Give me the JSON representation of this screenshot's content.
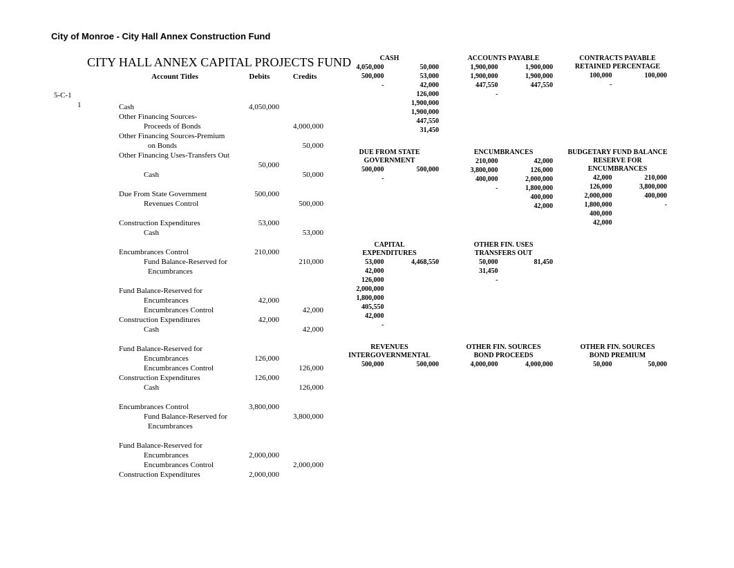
{
  "page": {
    "title_small": "City of Monroe - City Hall Annex Construction Fund",
    "title_large": "CITY HALL ANNEX CAPITAL PROJECTS FUND",
    "tag_5c1": "5-C-1",
    "tag_1": "1"
  },
  "journal": {
    "headers": {
      "account_titles": "Account Titles",
      "debits": "Debits",
      "credits": "Credits"
    },
    "rows": [
      {
        "t": "Cash",
        "d": "4,050,000",
        "c": ""
      },
      {
        "t": "Other Financing Sources-",
        "d": "",
        "c": ""
      },
      {
        "t": "Proceeds of Bonds",
        "indent": 1,
        "d": "",
        "c": "4,000,000"
      },
      {
        "t": "Other Financing Sources-Premium",
        "d": "",
        "c": "",
        "wrap": true
      },
      {
        "t": "on Bonds",
        "indent": 2,
        "d": "",
        "c": "50,000"
      },
      {
        "t": "Other Financing Uses-Transfers Out",
        "d": "",
        "c": "",
        "wrap": true
      },
      {
        "t": "",
        "d": "50,000",
        "c": ""
      },
      {
        "t": "Cash",
        "indent": 1,
        "d": "",
        "c": "50,000"
      },
      {
        "gap": true,
        "t": "Due From State Government",
        "d": "500,000",
        "c": ""
      },
      {
        "t": "Revenues Control",
        "indent": 1,
        "d": "",
        "c": "500,000"
      },
      {
        "gap": true,
        "t": "Construction Expenditures",
        "d": "53,000",
        "c": ""
      },
      {
        "t": "Cash",
        "indent": 1,
        "d": "",
        "c": "53,000"
      },
      {
        "gap": true,
        "t": "Encumbrances Control",
        "d": "210,000",
        "c": ""
      },
      {
        "t": "Fund Balance-Reserved for",
        "indent": 1,
        "d": "",
        "c": "210,000"
      },
      {
        "t": "Encumbrances",
        "indent": 2,
        "d": "",
        "c": ""
      },
      {
        "gap": true,
        "t": "Fund Balance-Reserved for",
        "d": "",
        "c": ""
      },
      {
        "t": "Encumbrances",
        "indent": 1,
        "d": "42,000",
        "c": ""
      },
      {
        "t": "Encumbrances Control",
        "indent": 1,
        "d": "",
        "c": "42,000"
      },
      {
        "t": "Construction Expenditures",
        "d": "42,000",
        "c": ""
      },
      {
        "t": "Cash",
        "indent": 1,
        "d": "",
        "c": "42,000"
      },
      {
        "gap": true,
        "t": "Fund Balance-Reserved for",
        "d": "",
        "c": ""
      },
      {
        "t": "Encumbrances",
        "indent": 1,
        "d": "126,000",
        "c": ""
      },
      {
        "t": "Encumbrances Control",
        "indent": 1,
        "d": "",
        "c": "126,000"
      },
      {
        "t": "Construction Expenditures",
        "d": "126,000",
        "c": ""
      },
      {
        "t": "Cash",
        "indent": 1,
        "d": "",
        "c": "126,000"
      },
      {
        "gap": true,
        "t": "Encumbrances Control",
        "d": "3,800,000",
        "c": ""
      },
      {
        "t": "Fund Balance-Reserved for",
        "indent": 1,
        "d": "",
        "c": "3,800,000"
      },
      {
        "t": "Encumbrances",
        "indent": 2,
        "d": "",
        "c": ""
      },
      {
        "gap": true,
        "t": "Fund Balance-Reserved for",
        "d": "",
        "c": ""
      },
      {
        "t": "Encumbrances",
        "indent": 1,
        "d": "2,000,000",
        "c": ""
      },
      {
        "t": "Encumbrances Control",
        "indent": 1,
        "d": "",
        "c": "2,000,000"
      },
      {
        "t": "Construction Expenditures",
        "d": "2,000,000",
        "c": ""
      }
    ]
  },
  "taccounts": {
    "row1": [
      {
        "title": [
          "",
          "CASH"
        ],
        "left": [
          "4,050,000",
          "500,000",
          "",
          "",
          "",
          "",
          "",
          "",
          "",
          "-"
        ],
        "right": [
          "50,000",
          "53,000",
          "42,000",
          "126,000",
          "1,900,000",
          "1,900,000",
          "447,550",
          "",
          "31,450",
          ""
        ]
      },
      {
        "title": [
          "",
          "ACCOUNTS PAYABLE"
        ],
        "left": [
          "1,900,000",
          "1,900,000",
          "447,550",
          "",
          "",
          "",
          "",
          "",
          "",
          "-"
        ],
        "right": [
          "1,900,000",
          "1,900,000",
          "447,550",
          "",
          "",
          "",
          "",
          "",
          "",
          ""
        ]
      },
      {
        "title": [
          "CONTRACTS PAYABLE",
          "RETAINED PERCENTAGE"
        ],
        "left": [
          "100,000",
          "",
          "",
          "",
          "",
          "",
          "",
          "",
          "",
          "-"
        ],
        "right": [
          "100,000",
          "",
          "",
          "",
          "",
          "",
          "",
          "",
          "",
          ""
        ]
      }
    ],
    "row2": [
      {
        "title": [
          "DUE FROM STATE",
          "GOVERNMENT"
        ],
        "left": [
          "500,000",
          "",
          "",
          "",
          "",
          "",
          "-"
        ],
        "right": [
          "500,000",
          "",
          "",
          "",
          "",
          "",
          ""
        ]
      },
      {
        "title": [
          "",
          "ENCUMBRANCES"
        ],
        "left": [
          "210,000",
          "3,800,000",
          "400,000",
          "",
          "",
          "",
          "-"
        ],
        "right": [
          "42,000",
          "126,000",
          "2,000,000",
          "1,800,000",
          "400,000",
          "42,000",
          ""
        ]
      },
      {
        "title": [
          "BUDGETARY FUND BALANCE",
          "RESERVE FOR ENCUMBRANCES"
        ],
        "left": [
          "42,000",
          "126,000",
          "2,000,000",
          "1,800,000",
          "400,000",
          "42,000",
          ""
        ],
        "right": [
          "210,000",
          "3,800,000",
          "400,000",
          "",
          "",
          "",
          "-"
        ]
      }
    ],
    "row3": [
      {
        "title": [
          "CAPITAL",
          "EXPENDITURES"
        ],
        "left": [
          "53,000",
          "42,000",
          "126,000",
          "2,000,000",
          "1,800,000",
          "405,550",
          "42,000",
          "-"
        ],
        "right": [
          "4,468,550",
          "",
          "",
          "",
          "",
          "",
          "",
          ""
        ]
      },
      {
        "title": [
          "OTHER FIN. USES",
          "TRANSFERS OUT"
        ],
        "left": [
          "50,000",
          "31,450",
          "",
          "",
          "",
          "",
          "",
          "-"
        ],
        "right": [
          "81,450",
          "",
          "",
          "",
          "",
          "",
          "",
          ""
        ]
      },
      {
        "title": [
          "",
          ""
        ],
        "left": [],
        "right": []
      }
    ],
    "row4": [
      {
        "title": [
          "REVENUES",
          "INTERGOVERNMENTAL"
        ],
        "left": [
          "500,000"
        ],
        "right": [
          "500,000"
        ]
      },
      {
        "title": [
          "OTHER FIN. SOURCES",
          "BOND PROCEEDS"
        ],
        "left": [
          "4,000,000"
        ],
        "right": [
          "4,000,000"
        ]
      },
      {
        "title": [
          "OTHER FIN. SOURCES",
          "BOND PREMIUM"
        ],
        "left": [
          "50,000"
        ],
        "right": [
          "50,000"
        ]
      }
    ]
  }
}
